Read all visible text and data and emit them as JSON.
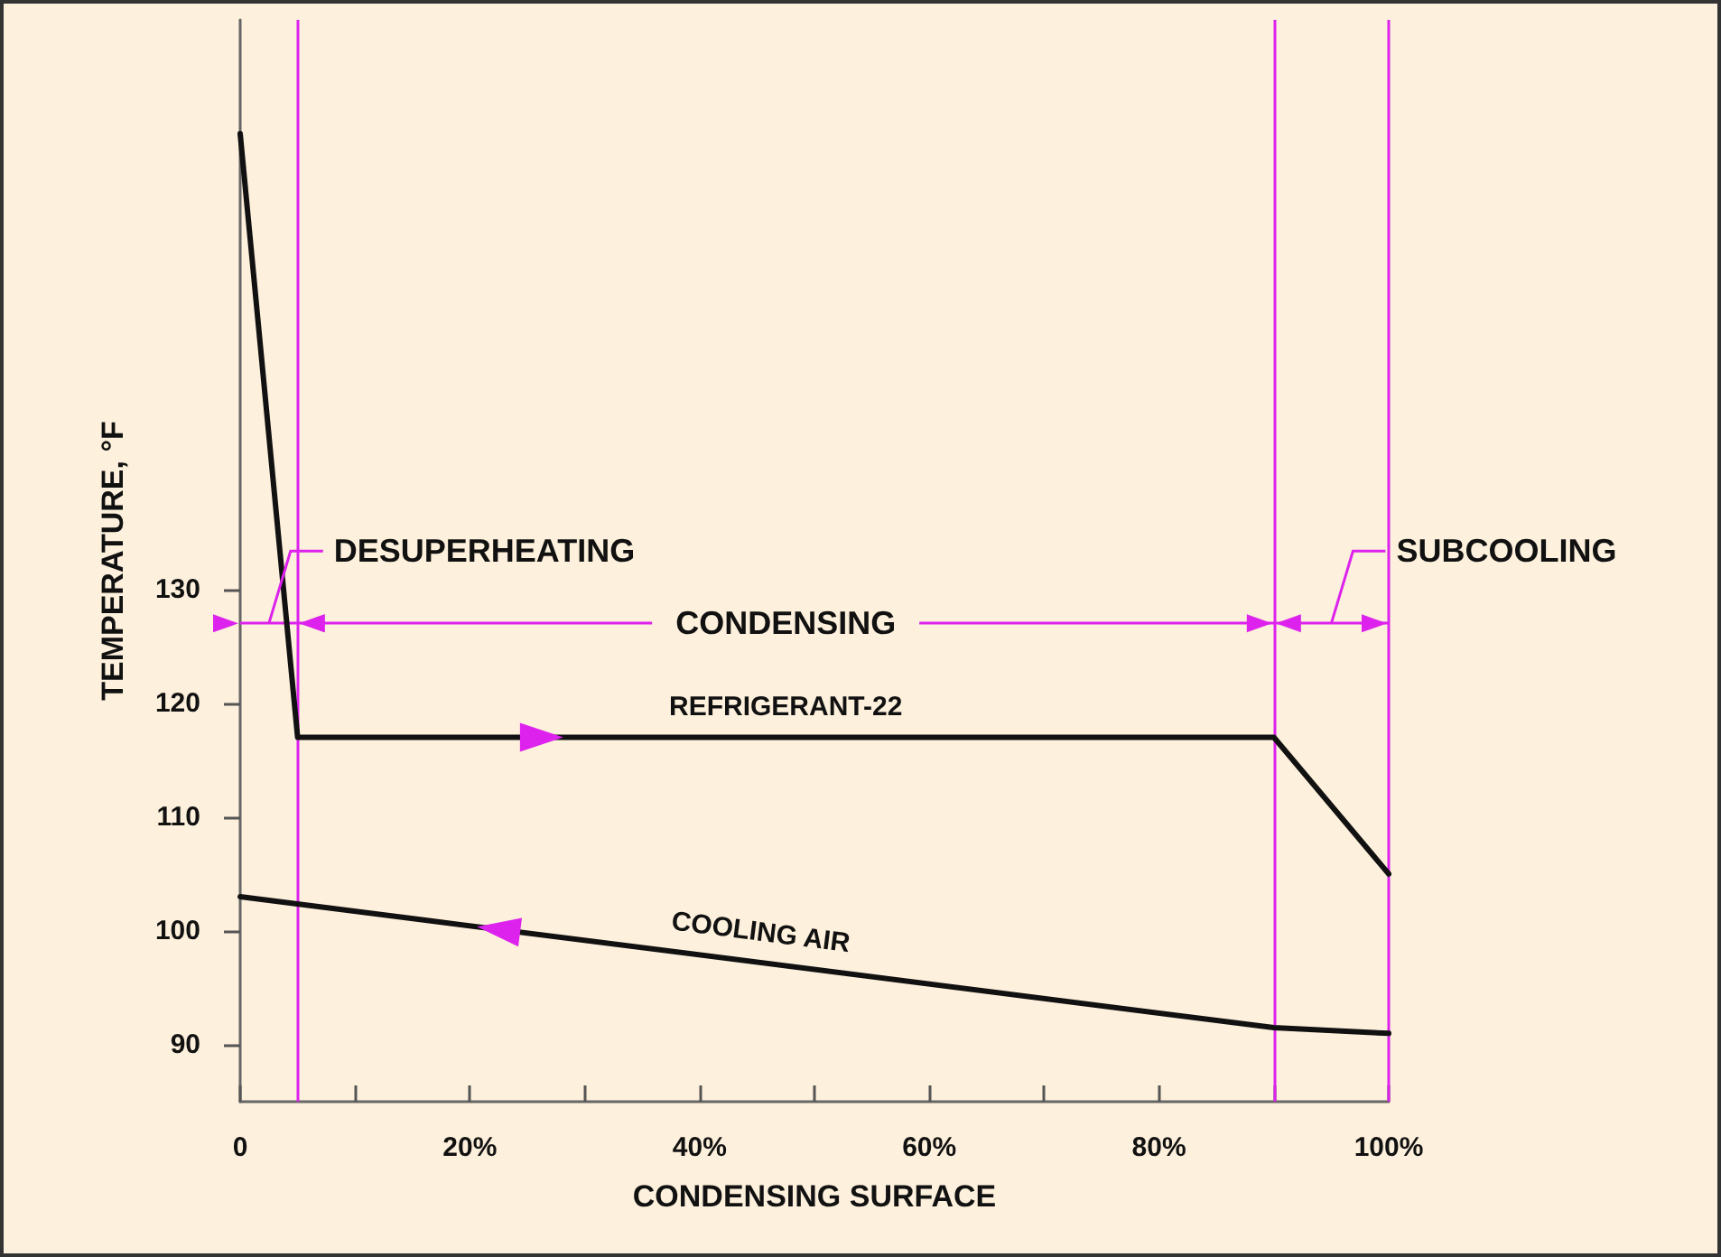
{
  "chart_data": {
    "type": "line",
    "xlabel": "CONDENSING SURFACE",
    "ylabel": "TEMPERATURE, °F",
    "xlim": [
      0,
      100
    ],
    "ylim": [
      85,
      180
    ],
    "xticks": [
      0,
      {
        "value": 10,
        "label": null
      },
      {
        "value": 20,
        "label": "20%"
      },
      {
        "value": 30,
        "label": null
      },
      {
        "value": 40,
        "label": "40%"
      },
      {
        "value": 50,
        "label": null
      },
      {
        "value": 60,
        "label": "60%"
      },
      {
        "value": 70,
        "label": null
      },
      {
        "value": 80,
        "label": "80%"
      },
      {
        "value": 90,
        "label": null
      },
      {
        "value": 100,
        "label": "100%"
      }
    ],
    "yticks": [
      90,
      100,
      110,
      120,
      130
    ],
    "grid": false,
    "series": [
      {
        "name": "REFRIGERANT-22",
        "color": "#111111",
        "x": [
          0,
          5,
          90,
          100
        ],
        "values": [
          170,
          117,
          117,
          105
        ]
      },
      {
        "name": "COOLING AIR",
        "color": "#111111",
        "x": [
          0,
          90,
          100
        ],
        "values": [
          103,
          91.5,
          91
        ]
      }
    ],
    "ref_lines": [
      {
        "axis": "x",
        "value": 5,
        "color": "#dd22ee"
      },
      {
        "axis": "x",
        "value": 90,
        "color": "#dd22ee"
      },
      {
        "axis": "x",
        "value": 100,
        "color": "#dd22ee"
      },
      {
        "axis": "y",
        "value": 127,
        "color": "#dd22ee"
      }
    ],
    "annotations": [
      {
        "text": "DESUPERHEATING",
        "x": 2.5,
        "y": 127
      },
      {
        "text": "CONDENSING",
        "x": 47.5,
        "y": 127
      },
      {
        "text": "SUBCOOLING",
        "x": 95,
        "y": 127
      }
    ]
  }
}
